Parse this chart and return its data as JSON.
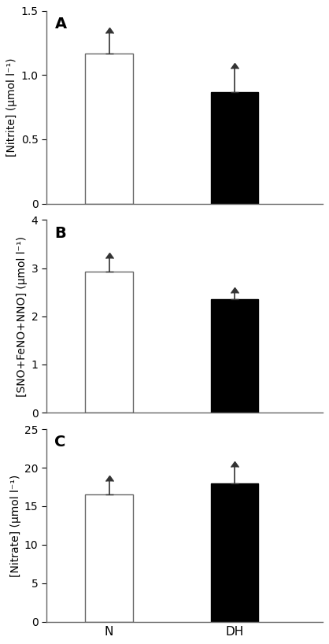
{
  "panels": [
    {
      "label": "A",
      "ylabel": "[Nitrite] (μmol l⁻¹)",
      "ylim": [
        0,
        1.5
      ],
      "yticks": [
        0,
        0.5,
        1.0,
        1.5
      ],
      "ytick_labels": [
        "0",
        "0.5",
        "1.0",
        "1.5"
      ],
      "bar_values": [
        1.17,
        0.87
      ],
      "bar_errors": [
        0.16,
        0.18
      ],
      "bar_colors": [
        "white",
        "black"
      ],
      "bar_edgecolors": [
        "#666666",
        "#000000"
      ],
      "categories": [
        "N",
        "DH"
      ]
    },
    {
      "label": "B",
      "ylabel": "[SNO+FeNO+NNO] (μmol l⁻¹)",
      "ylim": [
        0,
        4
      ],
      "yticks": [
        0,
        1,
        2,
        3,
        4
      ],
      "ytick_labels": [
        "0",
        "1",
        "2",
        "3",
        "4"
      ],
      "bar_values": [
        2.93,
        2.35
      ],
      "bar_errors": [
        0.28,
        0.14
      ],
      "bar_colors": [
        "white",
        "black"
      ],
      "bar_edgecolors": [
        "#666666",
        "#000000"
      ],
      "categories": [
        "N",
        "DH"
      ]
    },
    {
      "label": "C",
      "ylabel": "[Nitrate] (μmol l⁻¹)",
      "ylim": [
        0,
        25
      ],
      "yticks": [
        0,
        5,
        10,
        15,
        20,
        25
      ],
      "ytick_labels": [
        "0",
        "5",
        "10",
        "15",
        "20",
        "25"
      ],
      "bar_values": [
        16.5,
        18.0
      ],
      "bar_errors": [
        1.8,
        2.1
      ],
      "bar_colors": [
        "white",
        "black"
      ],
      "bar_edgecolors": [
        "#666666",
        "#000000"
      ],
      "categories": [
        "N",
        "DH"
      ]
    }
  ],
  "bar_width": 0.38,
  "x_positions": [
    1,
    2
  ],
  "xlim": [
    0.5,
    2.7
  ],
  "figure_width": 4.18,
  "figure_height": 8.18,
  "dpi": 100,
  "background_color": "white",
  "errorbar_capsize": 3.5,
  "errorbar_linewidth": 1.2,
  "errorbar_color": "#333333",
  "ylabel_fontsize": 10,
  "tick_fontsize": 10,
  "panel_label_fontsize": 14,
  "xtick_fontsize": 11
}
